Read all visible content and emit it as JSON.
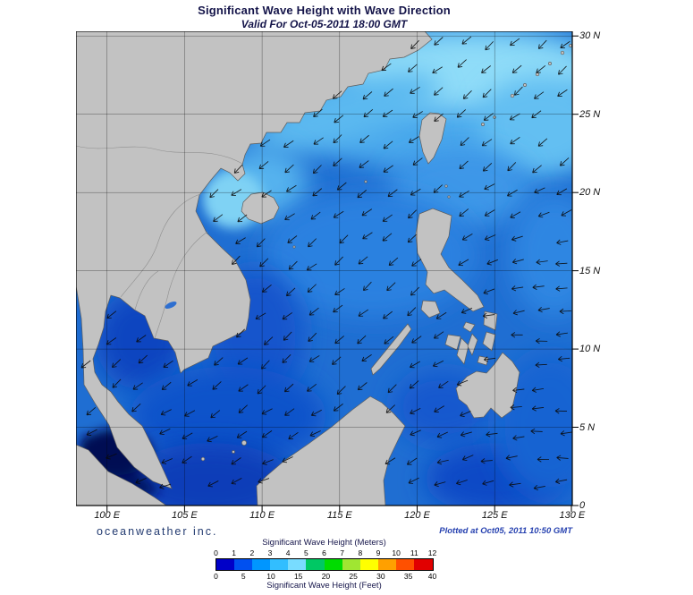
{
  "header": {
    "title": "Significant Wave Height with Wave Direction",
    "subtitle": "Valid For Oct-05-2011 18:00 GMT"
  },
  "axes": {
    "x_ticks": [
      "100 E",
      "105 E",
      "110 E",
      "115 E",
      "120 E",
      "125 E",
      "130 E"
    ],
    "y_ticks": [
      "30 N",
      "25 N",
      "20 N",
      "15 N",
      "10 N",
      "5 N",
      "0"
    ]
  },
  "footer": {
    "brand": "oceanweather inc.",
    "plotted": "Plotted at Oct05, 2011 10:50 GMT"
  },
  "legend": {
    "meters_label": "Significant Wave Height (Meters)",
    "feet_label": "Significant Wave Height (Feet)",
    "meters_ticks": [
      "0",
      "1",
      "2",
      "3",
      "4",
      "5",
      "6",
      "7",
      "8",
      "9",
      "10",
      "11",
      "12"
    ],
    "feet_ticks": [
      "0",
      "5",
      "10",
      "15",
      "20",
      "25",
      "30",
      "35",
      "40"
    ],
    "colors": [
      "#0000C8",
      "#0050F0",
      "#0096FF",
      "#32BEFF",
      "#78DCFF",
      "#00C864",
      "#00DC00",
      "#A0E632",
      "#FFFF00",
      "#FFA000",
      "#FF5000",
      "#E10000"
    ]
  }
}
